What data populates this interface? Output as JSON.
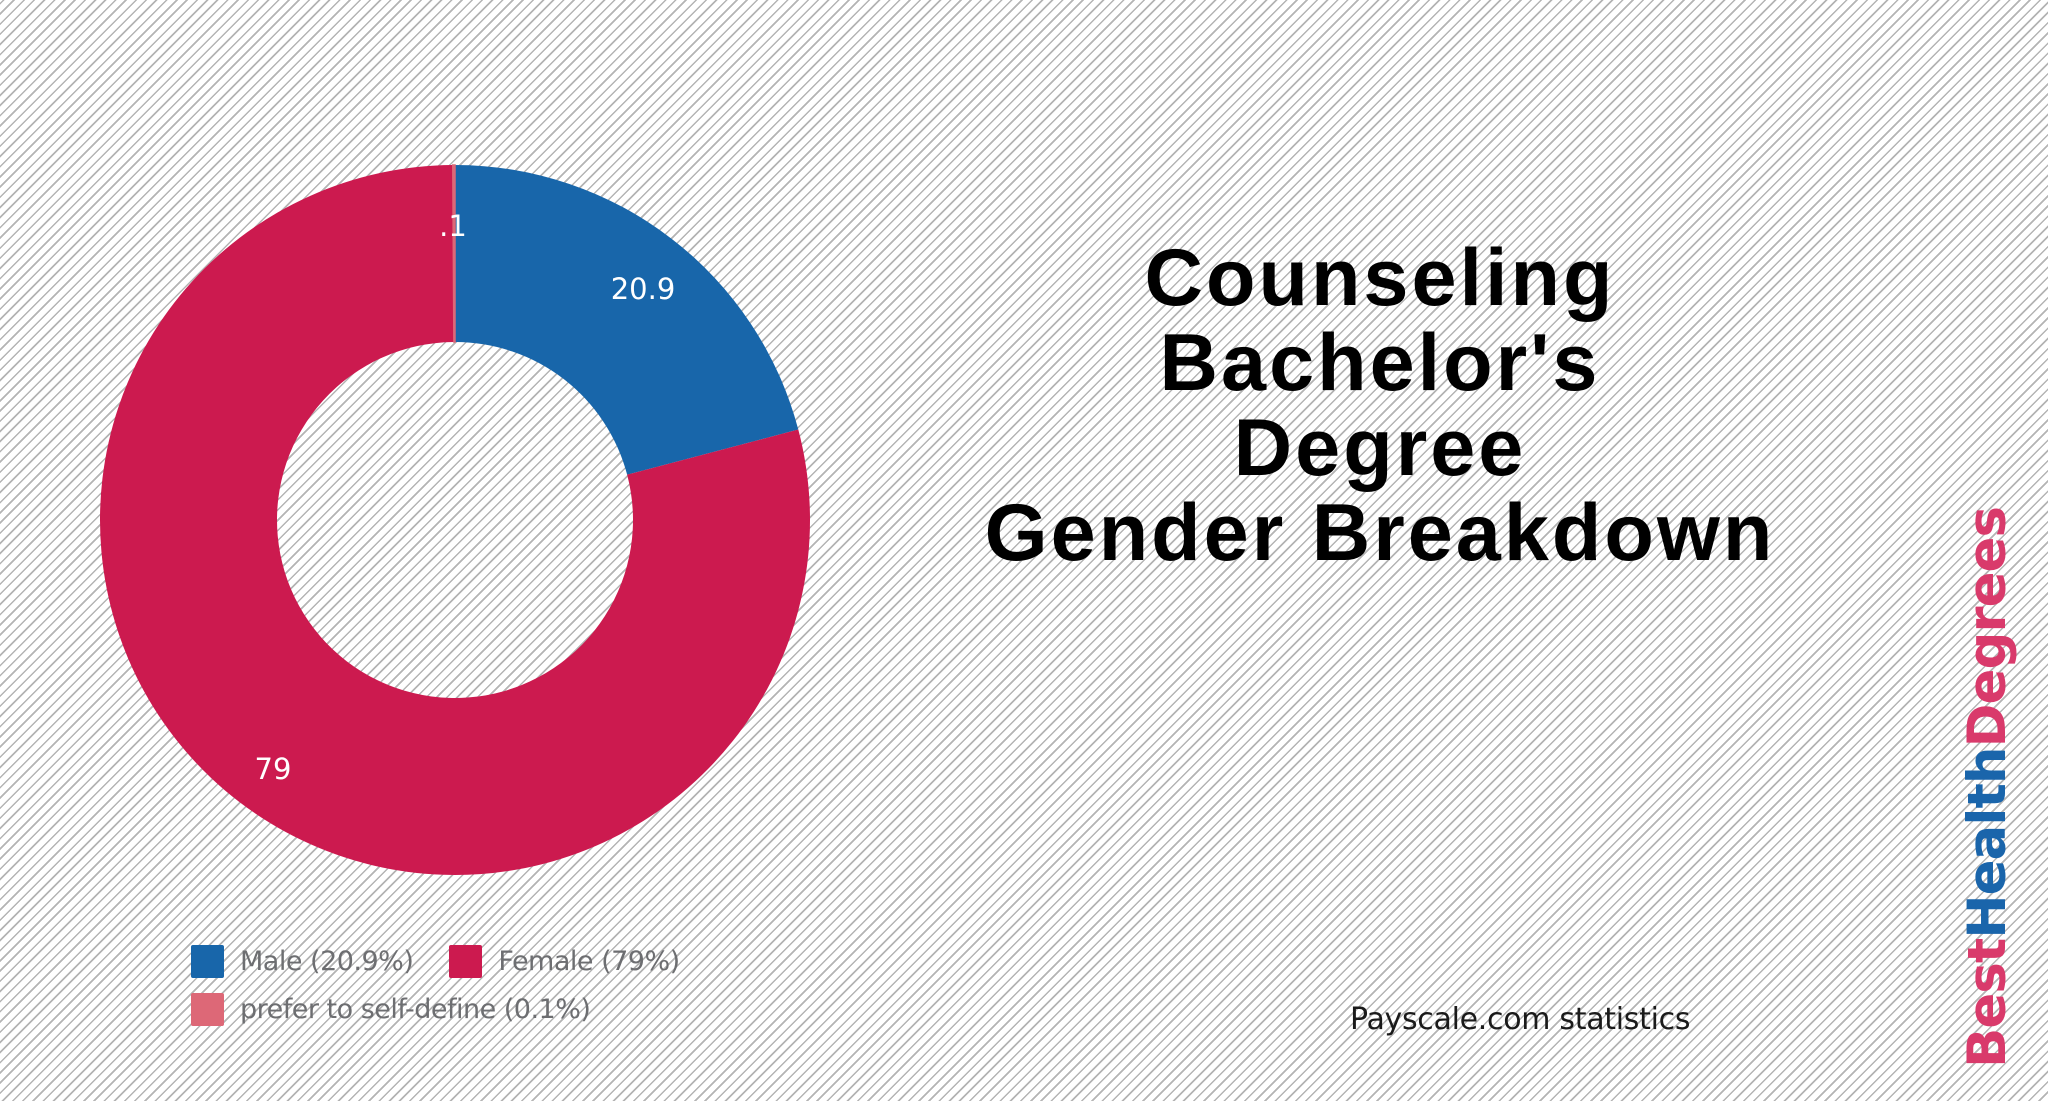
{
  "chart_data": {
    "type": "pie",
    "variant": "donut",
    "title": "Counseling Bachelor's Degree Gender Breakdown",
    "categories": [
      "Male",
      "Female",
      "prefer to self-define"
    ],
    "values": [
      20.9,
      79,
      0.1
    ],
    "slice_labels": [
      "20.9",
      "79",
      ".1"
    ],
    "colors": [
      "#1866aa",
      "#cc1a4f",
      "#dd6877"
    ],
    "legend": [
      "Male (20.9%)",
      "Female (79%)",
      "prefer to self-define (0.1%)"
    ],
    "legend_position": "bottom-left",
    "start_angle": "12 o'clock, clockwise",
    "source": "Payscale.com statistics"
  },
  "title_lines": [
    "Counseling",
    "Bachelor's",
    "Degree",
    "Gender Breakdown"
  ],
  "legend": {
    "items": [
      {
        "label": "Male (20.9%)",
        "color": "#1866aa"
      },
      {
        "label": "Female (79%)",
        "color": "#cc1a4f"
      },
      {
        "label": "prefer to self-define (0.1%)",
        "color": "#dd6877"
      }
    ]
  },
  "slices": {
    "male": {
      "label": "20.9"
    },
    "female": {
      "label": "79"
    },
    "self_define": {
      "label": ".1"
    }
  },
  "source": "Payscale.com  statistics",
  "logo": {
    "part1": "Best",
    "part2": "Health",
    "part3": "Degrees",
    "color_primary": "#d93a6b",
    "color_secondary": "#1a65ab"
  }
}
